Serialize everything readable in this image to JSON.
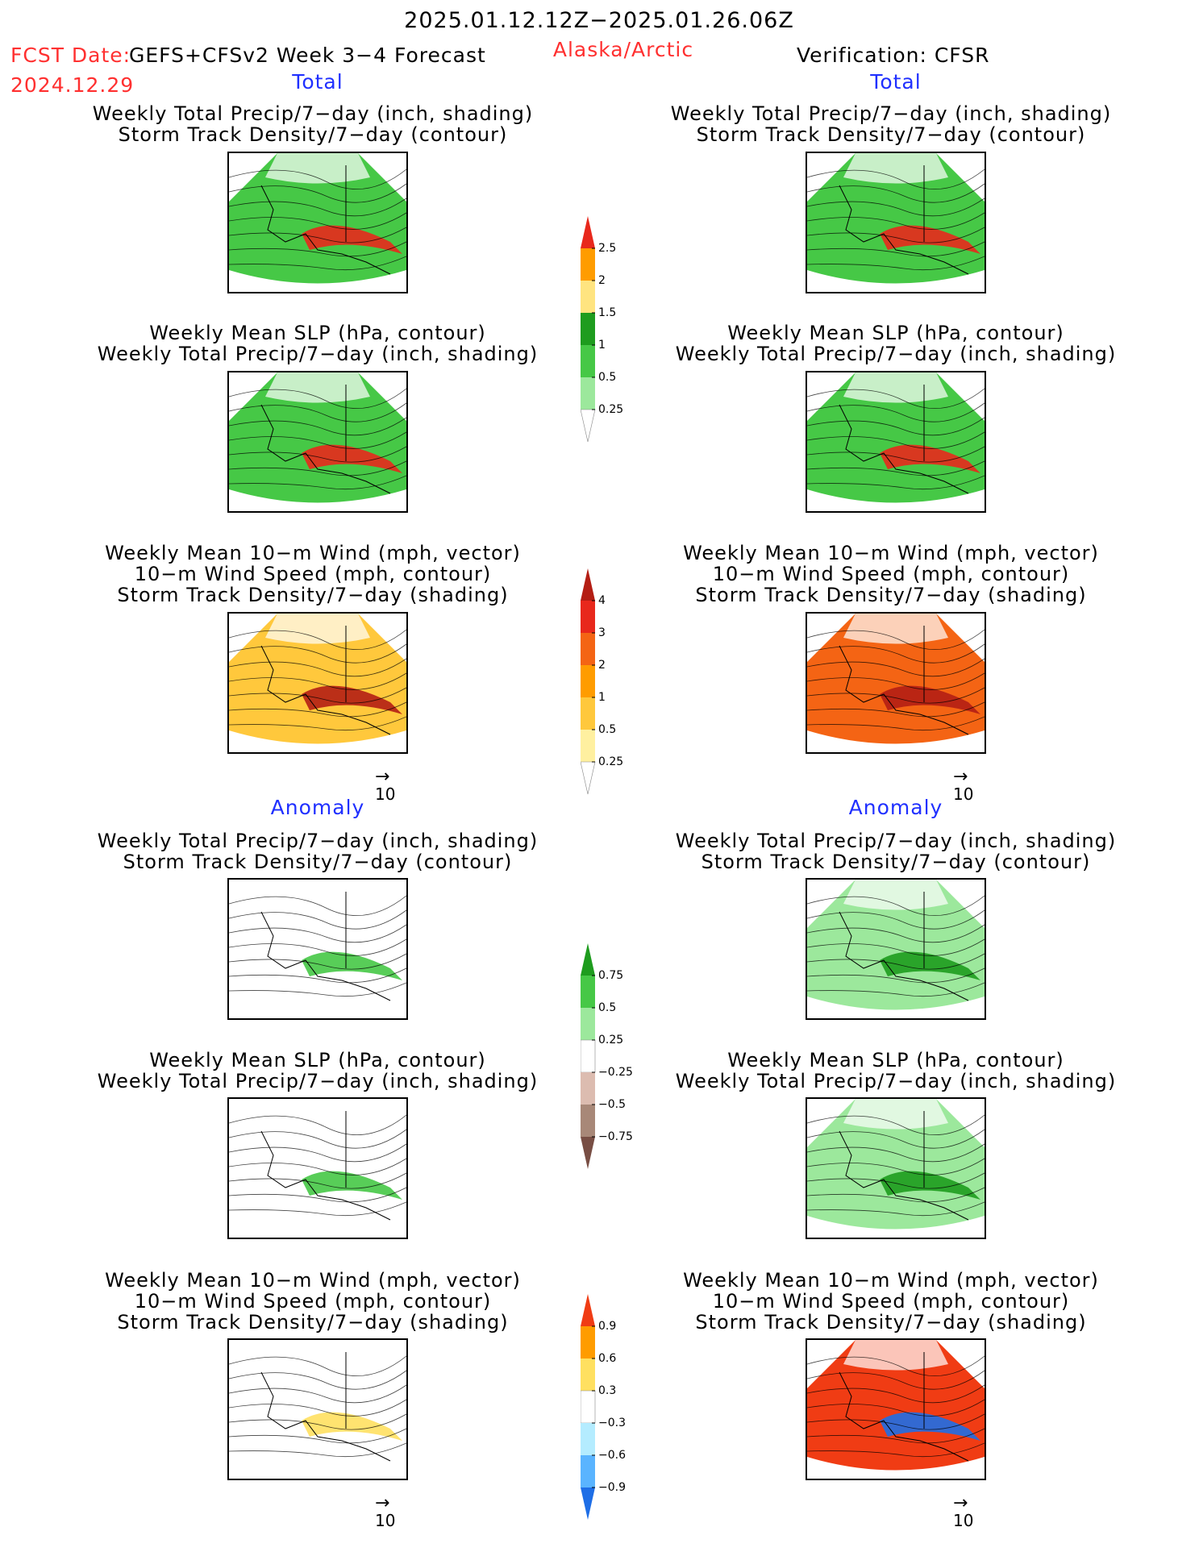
{
  "header": {
    "date_range": "2025.01.12.12Z−2025.01.26.06Z",
    "fcst_label": "FCST Date:",
    "model": "GEFS+CFSv2 Week 3−4 Forecast",
    "region": "Alaska/Arctic",
    "verification": "Verification: CFSR",
    "fcst_date": "2024.12.29"
  },
  "sections": {
    "total": "Total",
    "anomaly": "Anomaly"
  },
  "titles": {
    "precip_storm": [
      "Weekly Total Precip/7−day (inch, shading)",
      "Storm Track Density/7−day (contour)"
    ],
    "slp_precip": [
      "Weekly Mean SLP (hPa, contour)",
      "Weekly Total Precip/7−day (inch, shading)"
    ],
    "wind_storm": [
      "Weekly Mean 10−m Wind (mph, vector)",
      "10−m Wind Speed (mph, contour)",
      "Storm Track Density/7−day (shading)"
    ]
  },
  "vector_ref": "10",
  "colorbars": {
    "precip_total": {
      "labels": [
        "2.5",
        "2",
        "1.5",
        "1",
        "0.5",
        "0.25"
      ],
      "colors": [
        "#e8281c",
        "#ff9c00",
        "#ffe480",
        "#1e9c1e",
        "#46c846",
        "#9ce89c",
        "#ffffff"
      ]
    },
    "storm_total": {
      "labels": [
        "4",
        "3",
        "2",
        "1",
        "0.5",
        "0.25"
      ],
      "colors": [
        "#b41e14",
        "#e8281c",
        "#f46414",
        "#ff9c00",
        "#ffc83c",
        "#fff0a0",
        "#ffffff"
      ]
    },
    "precip_anom": {
      "labels": [
        "0.75",
        "0.5",
        "0.25",
        "−0.25",
        "−0.5",
        "−0.75"
      ],
      "colors": [
        "#1e9c1e",
        "#46c846",
        "#9ce89c",
        "#ffffff",
        "#dcbcb0",
        "#a88878",
        "#784e44"
      ]
    },
    "storm_anom": {
      "labels": [
        "0.9",
        "0.6",
        "0.3",
        "−0.3",
        "−0.6",
        "−0.9"
      ],
      "colors": [
        "#f03c14",
        "#ff9c00",
        "#ffe060",
        "#ffffff",
        "#b4ecff",
        "#5ab4ff",
        "#1e6ee6"
      ]
    }
  },
  "panels": {
    "total_precip_storm_fcst": {
      "fill": "#46c846",
      "band": "#e8281c"
    },
    "total_precip_storm_obs": {
      "fill": "#46c846",
      "band": "#e8281c"
    },
    "total_slp_precip_fcst": {
      "fill": "#46c846",
      "band": "#e8281c"
    },
    "total_slp_precip_obs": {
      "fill": "#46c846",
      "band": "#e8281c"
    },
    "total_wind_storm_fcst": {
      "fill": "#ffc83c",
      "band": "#b41e14"
    },
    "total_wind_storm_obs": {
      "fill": "#f46414",
      "band": "#b41e14"
    },
    "anom_precip_storm_fcst": {
      "fill": "#ffffff",
      "band": "#46c846"
    },
    "anom_precip_storm_obs": {
      "fill": "#9ce89c",
      "band": "#1e9c1e"
    },
    "anom_slp_precip_fcst": {
      "fill": "#ffffff",
      "band": "#46c846"
    },
    "anom_slp_precip_obs": {
      "fill": "#9ce89c",
      "band": "#1e9c1e"
    },
    "anom_wind_storm_fcst": {
      "fill": "#ffffff",
      "band": "#ffe060"
    },
    "anom_wind_storm_obs": {
      "fill": "#f03c14",
      "band": "#1e6ee6"
    }
  }
}
